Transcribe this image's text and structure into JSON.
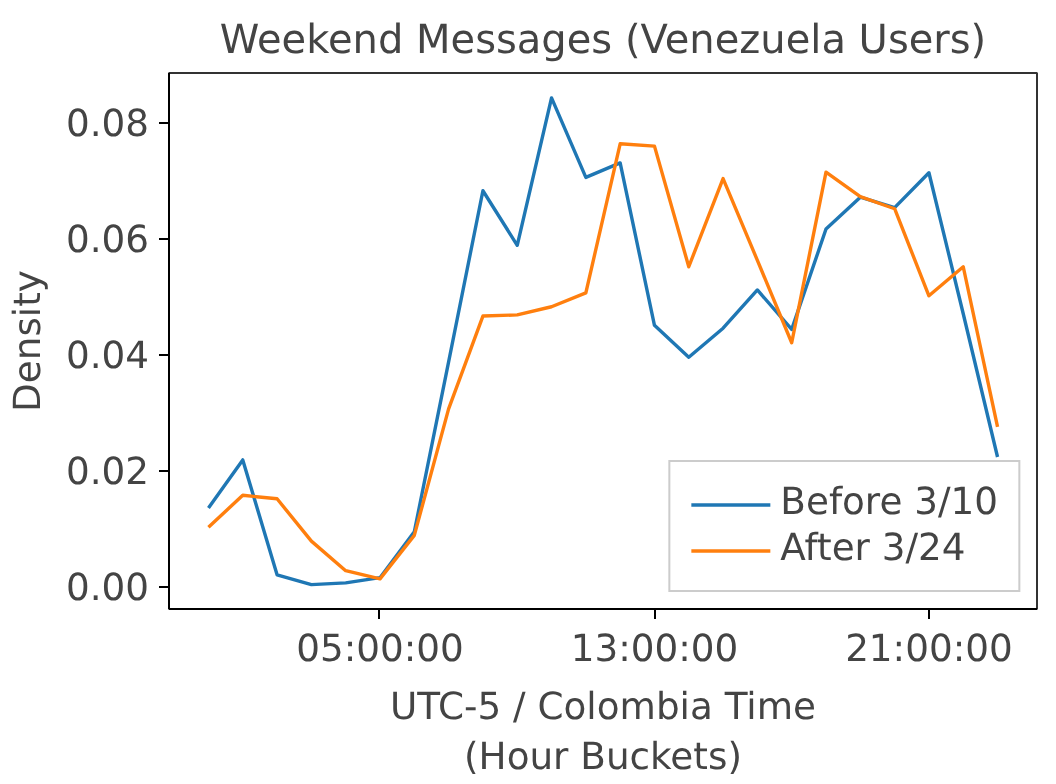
{
  "chart_data": {
    "type": "line",
    "title": "Weekend Messages (Venezuela Users)",
    "xlabel": "UTC-5 / Colombia Time\n(Hour Buckets)",
    "ylabel": "Density",
    "x": [
      0,
      1,
      2,
      3,
      4,
      5,
      6,
      7,
      8,
      9,
      10,
      11,
      12,
      13,
      14,
      15,
      16,
      17,
      18,
      19,
      20,
      21,
      22,
      23
    ],
    "series": [
      {
        "name": "Before 3/10",
        "color": "#1f77b4",
        "values": [
          0.0135,
          0.0218,
          0.002,
          0.0003,
          0.0006,
          0.0015,
          0.0094,
          0.0387,
          0.0682,
          0.0588,
          0.0842,
          0.0705,
          0.073,
          0.045,
          0.0395,
          0.0445,
          0.0511,
          0.0443,
          0.0616,
          0.0671,
          0.0653,
          0.0713,
          0.047,
          0.0223
        ]
      },
      {
        "name": "After 3/24",
        "color": "#ff7f0e",
        "values": [
          0.0102,
          0.0157,
          0.0151,
          0.0078,
          0.0027,
          0.0013,
          0.0088,
          0.0306,
          0.0466,
          0.0468,
          0.0482,
          0.0506,
          0.0763,
          0.0759,
          0.0551,
          0.0703,
          0.0562,
          0.042,
          0.0714,
          0.0672,
          0.0651,
          0.0501,
          0.0551,
          0.0275
        ]
      }
    ],
    "xlim": [
      -1.15,
      24.15
    ],
    "ylim": [
      -0.0039,
      0.0885
    ],
    "xticks": [
      {
        "value": 5,
        "label": "05:00:00"
      },
      {
        "value": 13,
        "label": "13:00:00"
      },
      {
        "value": 21,
        "label": "21:00:00"
      }
    ],
    "yticks": [
      {
        "value": 0,
        "label": "0.00"
      },
      {
        "value": 0.02,
        "label": "0.02"
      },
      {
        "value": 0.04,
        "label": "0.04"
      },
      {
        "value": 0.06,
        "label": "0.06"
      },
      {
        "value": 0.08,
        "label": "0.08"
      }
    ],
    "legend": "bottom right",
    "grid": false,
    "line_style": "solid"
  }
}
